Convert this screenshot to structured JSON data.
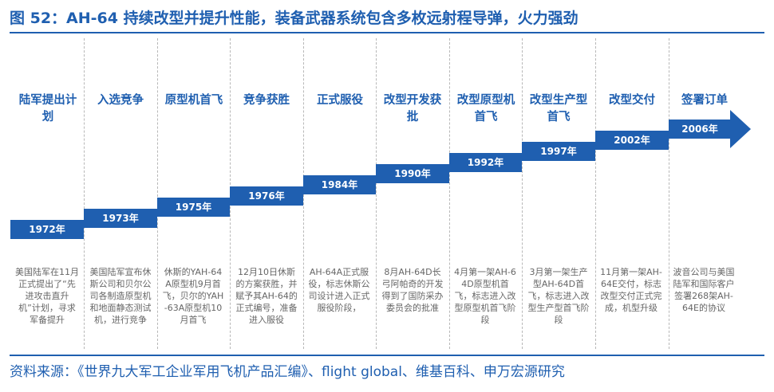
{
  "title": "图 52：AH-64 持续改型并提升性能，装备武器系统包含多枚远射程导弹，火力强劲",
  "source": "资料来源：《世界九大军工企业军用飞机产品汇编》、flight global、维基百科、申万宏源研究",
  "colors": {
    "brand_blue": "#1f5fb0",
    "desc_gray": "#666666",
    "divider_gray": "#b8b8b8"
  },
  "timeline": [
    {
      "event": "陆军提出计划",
      "year": "1972年",
      "desc": "美国陆军在11月正式提出了“先进攻击直升机”计划，寻求军备提升"
    },
    {
      "event": "入选竞争",
      "year": "1973年",
      "desc": "美国陆军宣布休斯公司和贝尔公司各制造原型机和地面静态测试机，进行竞争"
    },
    {
      "event": "原型机首飞",
      "year": "1975年",
      "desc": "休斯的YAH-64A原型机9月首飞，贝尔的YAH-63A原型机10月首飞"
    },
    {
      "event": "竞争获胜",
      "year": "1976年",
      "desc": "12月10日休斯的方案获胜，并赋予其AH-64的正式编号，准备进入服役"
    },
    {
      "event": "正式服役",
      "year": "1984年",
      "desc": "AH-64A正式服役，标志休斯公司设计进入正式服役阶段，"
    },
    {
      "event": "改型开发获批",
      "year": "1990年",
      "desc": "8月AH-64D长弓阿帕奇的开发得到了国防采办委员会的批准"
    },
    {
      "event": "改型原型机首飞",
      "year": "1992年",
      "desc": "4月第一架AH-64D原型机首飞，标志进入改型原型机首飞阶段"
    },
    {
      "event": "改型生产型首飞",
      "year": "1997年",
      "desc": "3月第一架生产型AH-64D首飞，标志进入改型生产型首飞阶段"
    },
    {
      "event": "改型交付",
      "year": "2002年",
      "desc": "11月第一架AH-64E交付，标志改型交付正式完成，机型升级"
    },
    {
      "event": "签署订单",
      "year": "2006年",
      "desc": "波音公司与美国陆军和国际客户签署268架AH-64E的协议"
    }
  ]
}
